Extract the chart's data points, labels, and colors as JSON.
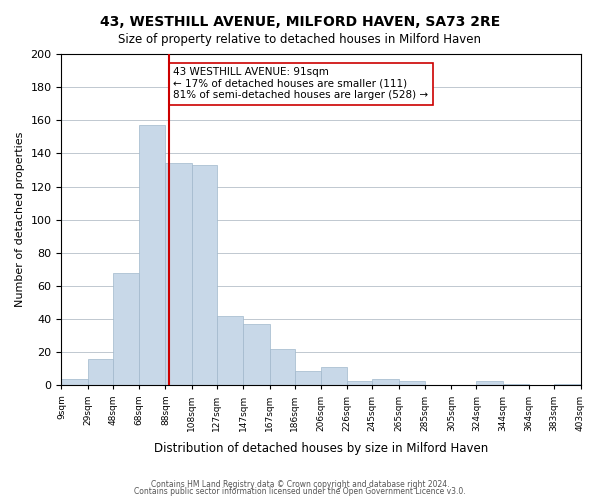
{
  "title": "43, WESTHILL AVENUE, MILFORD HAVEN, SA73 2RE",
  "subtitle": "Size of property relative to detached houses in Milford Haven",
  "xlabel": "Distribution of detached houses by size in Milford Haven",
  "ylabel": "Number of detached properties",
  "bar_color": "#c8d8e8",
  "bar_edge_color": "#a0b8cc",
  "vline_color": "#cc0000",
  "vline_x": 91,
  "annotation_text": "43 WESTHILL AVENUE: 91sqm\n← 17% of detached houses are smaller (111)\n81% of semi-detached houses are larger (528) →",
  "annotation_box_edge": "#cc0000",
  "bins": [
    9,
    29,
    48,
    68,
    88,
    108,
    127,
    147,
    167,
    186,
    206,
    226,
    245,
    265,
    285,
    305,
    324,
    344,
    364,
    383,
    403
  ],
  "bin_labels": [
    "9sqm",
    "29sqm",
    "48sqm",
    "68sqm",
    "88sqm",
    "108sqm",
    "127sqm",
    "147sqm",
    "167sqm",
    "186sqm",
    "206sqm",
    "226sqm",
    "245sqm",
    "265sqm",
    "285sqm",
    "305sqm",
    "324sqm",
    "344sqm",
    "364sqm",
    "383sqm",
    "403sqm"
  ],
  "bar_heights": [
    4,
    16,
    68,
    157,
    134,
    133,
    42,
    37,
    22,
    9,
    11,
    3,
    4,
    3,
    0,
    0,
    3,
    1,
    0,
    1
  ],
  "ylim": [
    0,
    200
  ],
  "yticks": [
    0,
    20,
    40,
    60,
    80,
    100,
    120,
    140,
    160,
    180,
    200
  ],
  "background_color": "#ffffff",
  "grid_color": "#c0c8d0",
  "footer_line1": "Contains HM Land Registry data © Crown copyright and database right 2024.",
  "footer_line2": "Contains public sector information licensed under the Open Government Licence v3.0."
}
